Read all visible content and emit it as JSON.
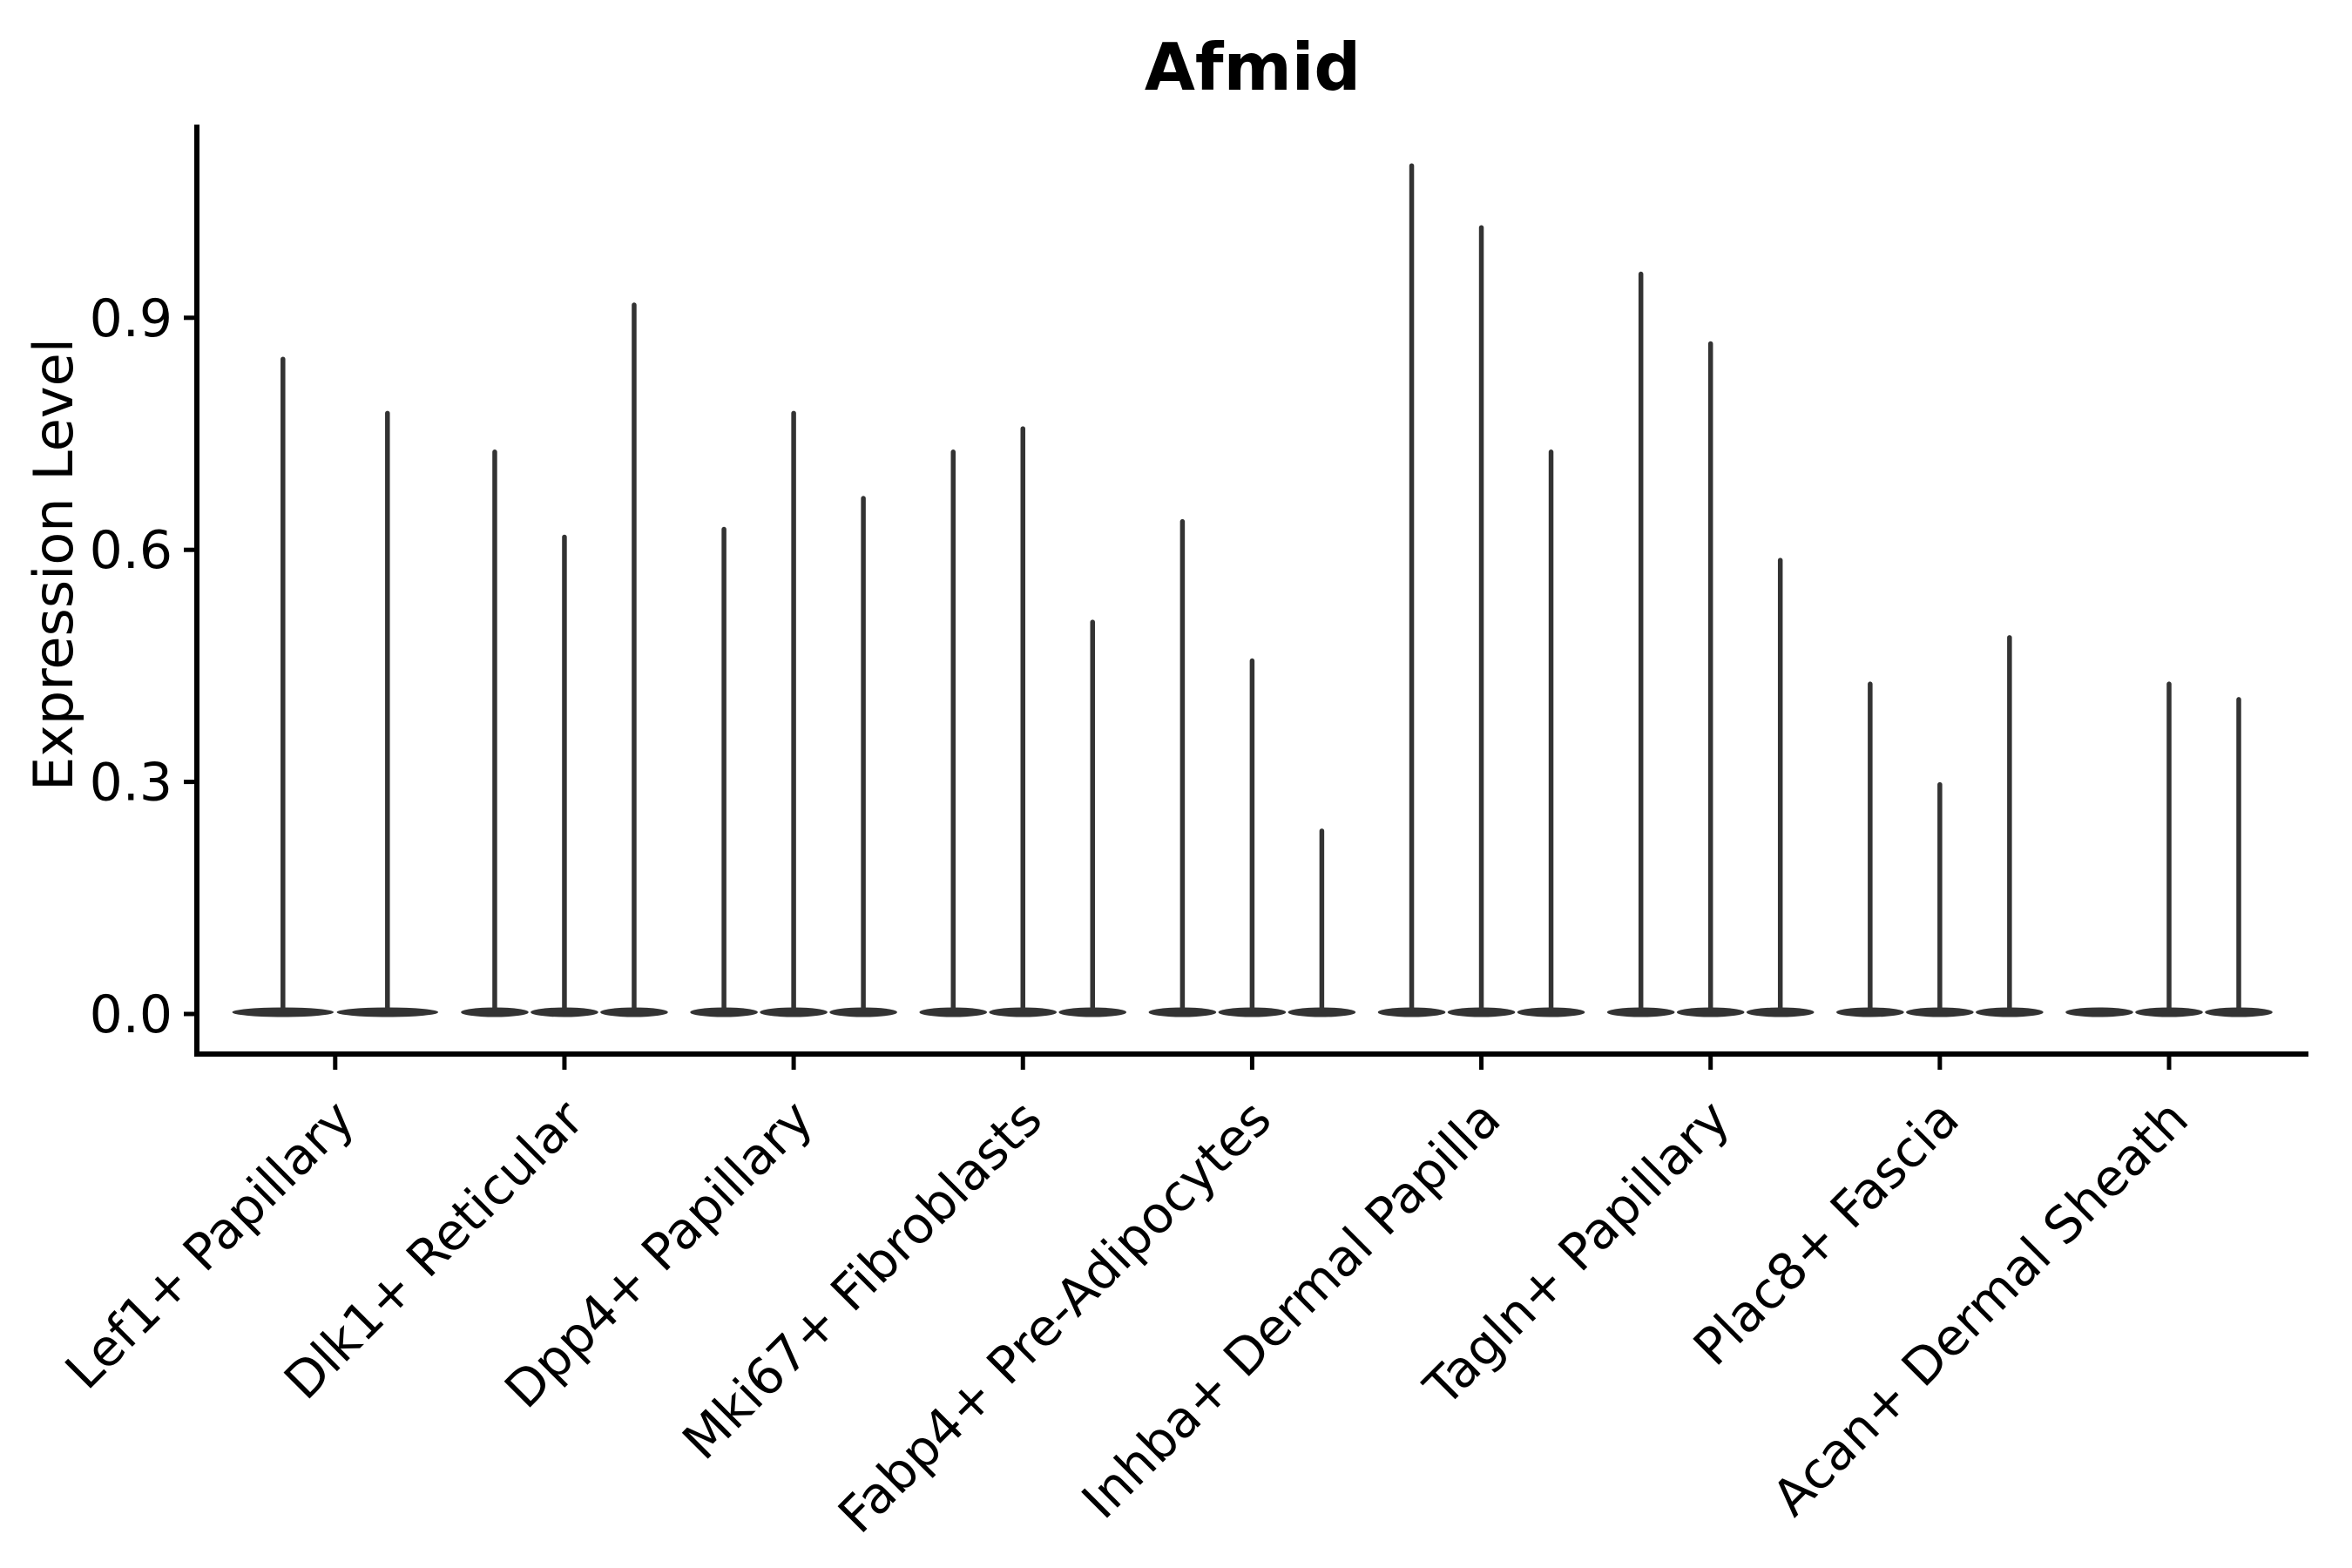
{
  "figure": {
    "background_color": "#ffffff"
  },
  "chart_data": {
    "type": "violin",
    "title": "Afmid",
    "ylabel": "Expression Level",
    "xlabel": "",
    "grid": false,
    "legend": null,
    "ylim": [
      -0.05,
      1.15
    ],
    "yticks": [
      0.0,
      0.3,
      0.6,
      0.9
    ],
    "ytick_labels": [
      "0.0",
      "0.3",
      "0.6",
      "0.9"
    ],
    "categories": [
      "Lef1+ Papillary",
      "Dlk1+ Reticular",
      "Dpp4+ Papillary",
      "Mki67+ Fibroblasts",
      "Fabp4+ Pre-Adipocytes",
      "Inhba+ Dermal Papilla",
      "Tagln+ Papillary",
      "Plac8+ Fascia",
      "Acan+ Dermal Sheath"
    ],
    "groups": [
      {
        "category": "Lef1+ Papillary",
        "violin_tip_values": [
          0.85,
          0.78
        ]
      },
      {
        "category": "Dlk1+ Reticular",
        "violin_tip_values": [
          0.73,
          0.62,
          0.92
        ]
      },
      {
        "category": "Dpp4+ Papillary",
        "violin_tip_values": [
          0.63,
          0.78,
          0.67
        ]
      },
      {
        "category": "Mki67+ Fibroblasts",
        "violin_tip_values": [
          0.73,
          0.76,
          0.51
        ]
      },
      {
        "category": "Fabp4+ Pre-Adipocytes",
        "violin_tip_values": [
          0.64,
          0.46,
          0.24
        ]
      },
      {
        "category": "Inhba+ Dermal Papilla",
        "violin_tip_values": [
          1.1,
          1.02,
          0.73
        ]
      },
      {
        "category": "Tagln+ Papillary",
        "violin_tip_values": [
          0.96,
          0.87,
          0.59
        ]
      },
      {
        "category": "Plac8+ Fascia",
        "violin_tip_values": [
          0.43,
          0.3,
          0.49
        ]
      },
      {
        "category": "Acan+ Dermal Sheath",
        "violin_tip_values": [
          0.0,
          0.43,
          0.41
        ]
      }
    ],
    "colors": {
      "violin": "#333333",
      "axis": "#000000",
      "text": "#000000"
    }
  }
}
